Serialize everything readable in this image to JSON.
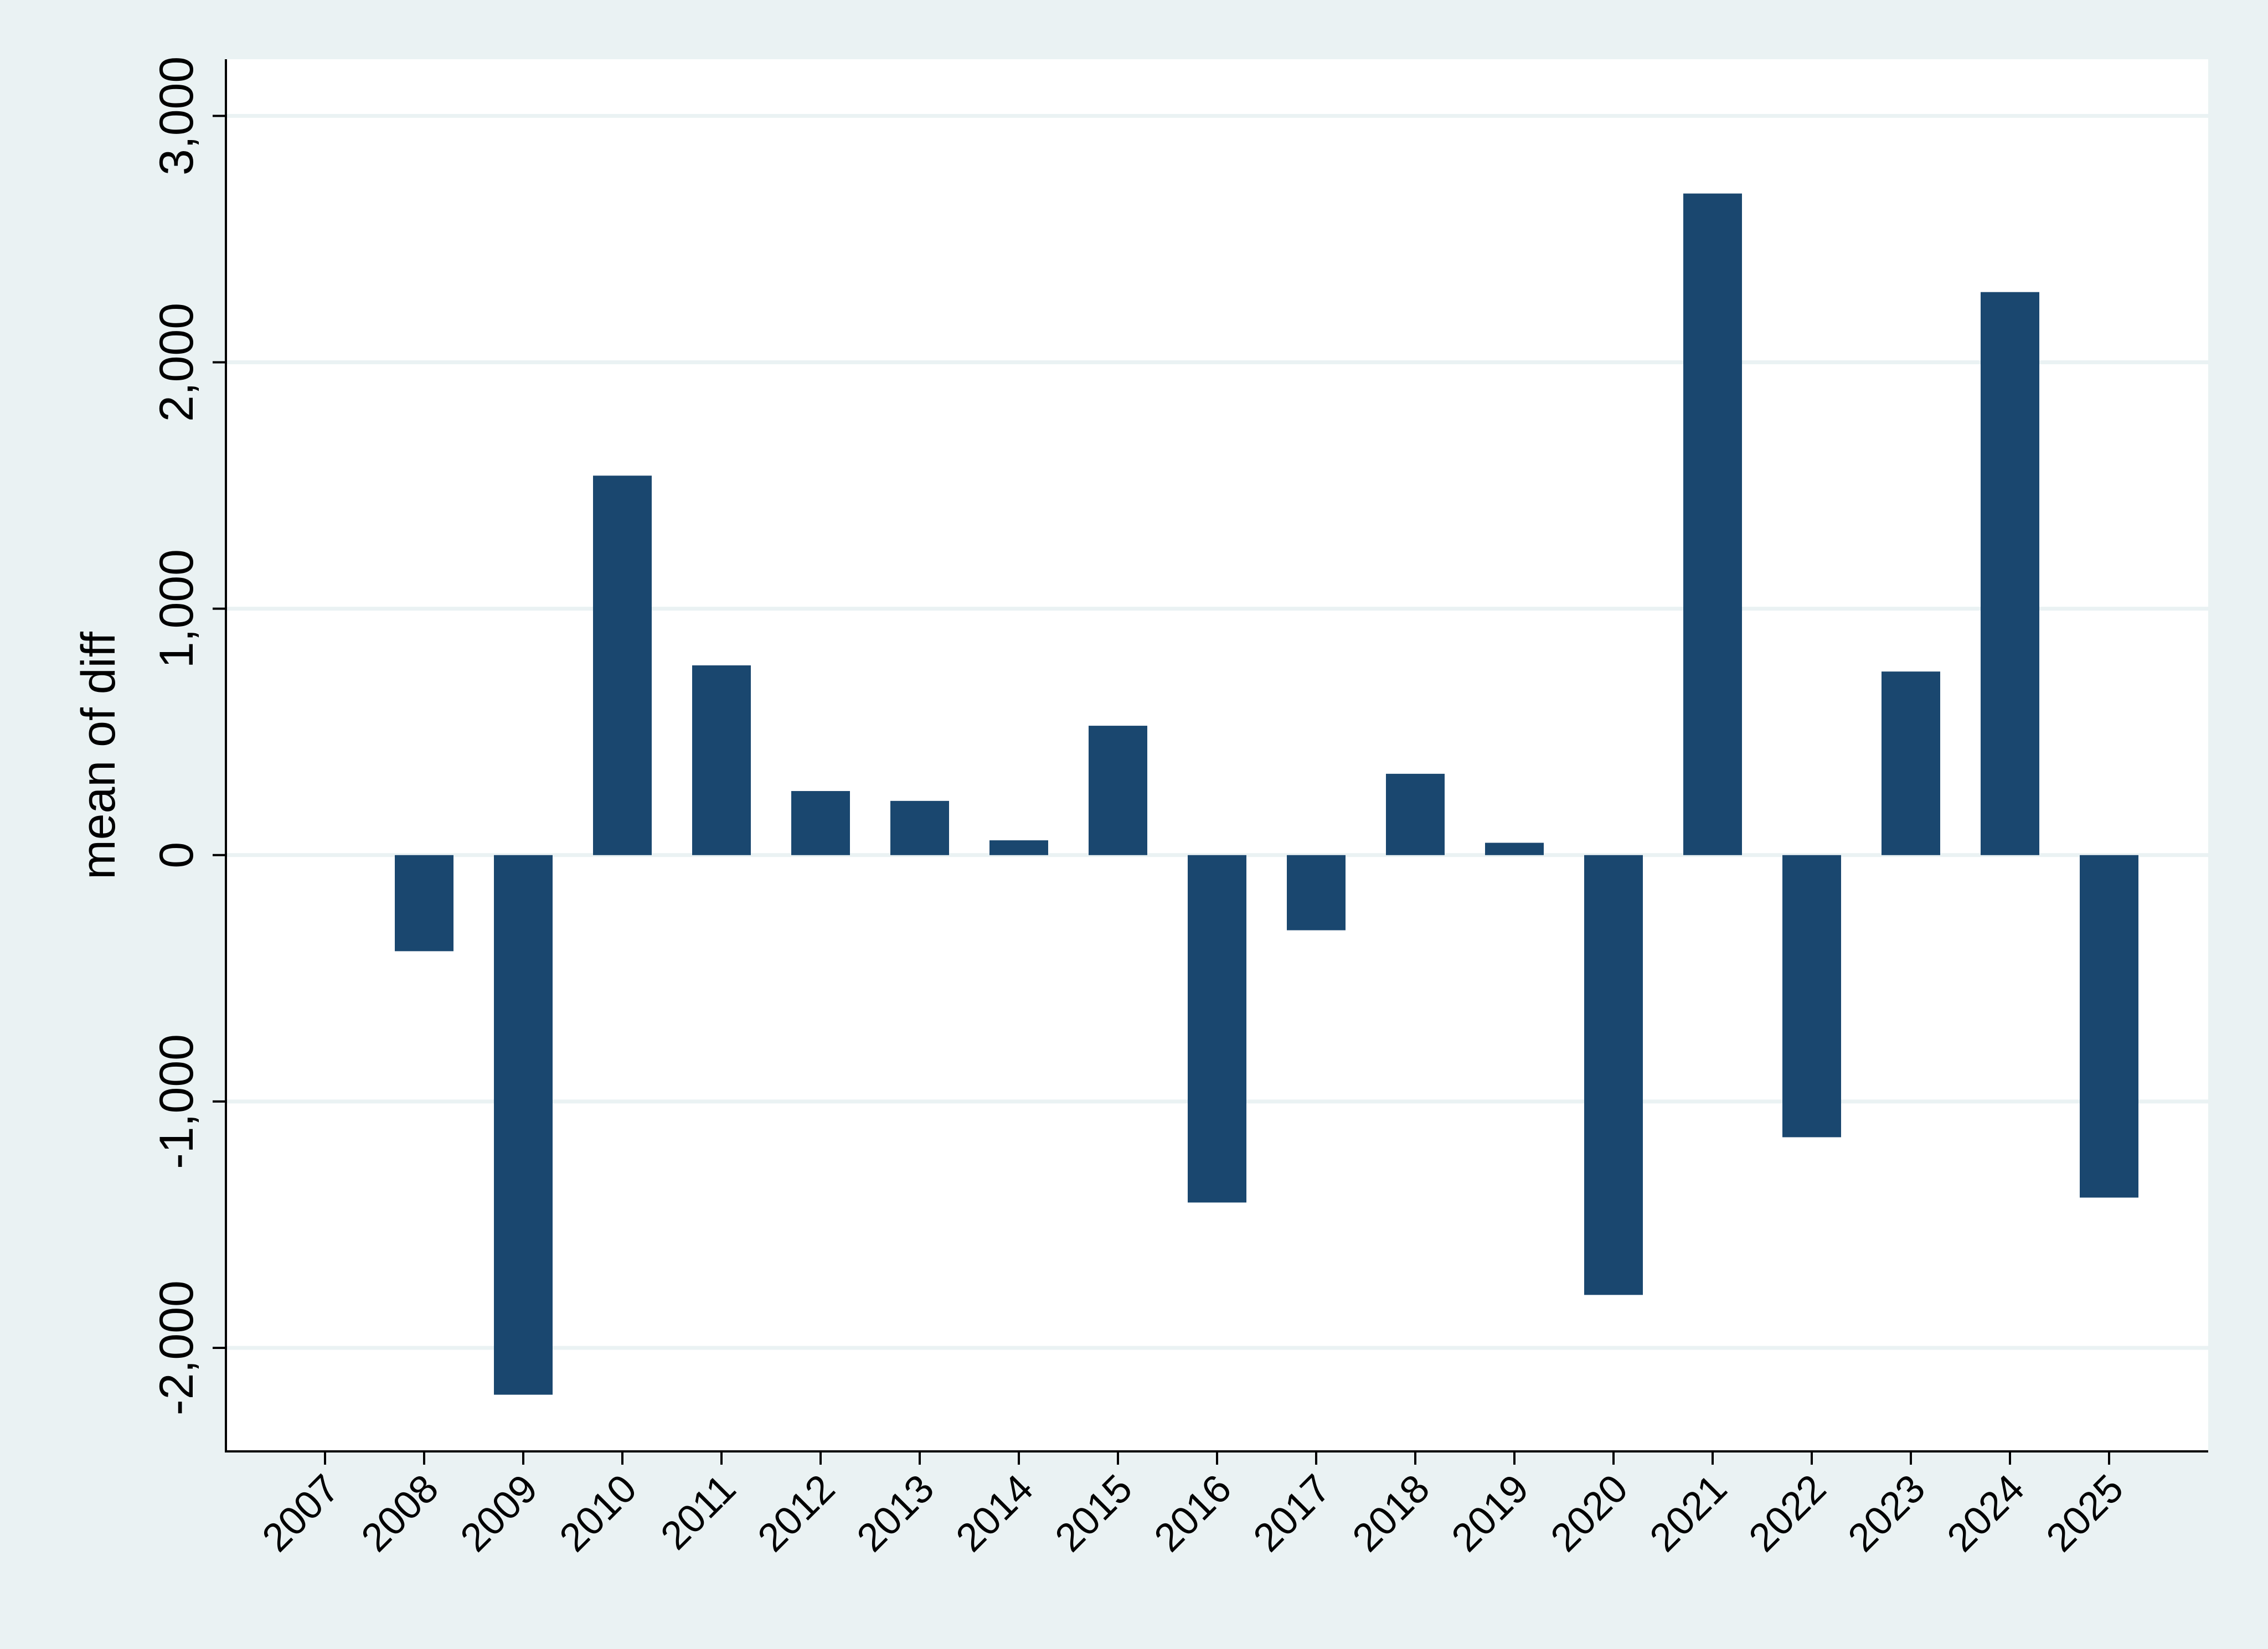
{
  "chart_data": {
    "type": "bar",
    "title": "",
    "xlabel": "",
    "ylabel": "mean of diff",
    "ylim": [
      -2420,
      3230
    ],
    "yticks": [
      -2000,
      -1000,
      0,
      1000,
      2000,
      3000
    ],
    "ytick_labels": [
      "-2,000",
      "-1,000",
      "0",
      "1,000",
      "2,000",
      "3,000"
    ],
    "categories": [
      "2007",
      "2008",
      "2009",
      "2010",
      "2011",
      "2012",
      "2013",
      "2014",
      "2015",
      "2016",
      "2017",
      "2018",
      "2019",
      "2020",
      "2021",
      "2022",
      "2023",
      "2024",
      "2025"
    ],
    "values": [
      0,
      -390,
      -2190,
      1540,
      770,
      260,
      220,
      60,
      525,
      -1410,
      -305,
      330,
      50,
      -1785,
      2685,
      -1145,
      745,
      2285,
      -1390
    ],
    "grid": true,
    "legend": "none",
    "colors": {
      "bar": "#1a476f",
      "background": "#eaf2f3",
      "plot_background": "#ffffff",
      "grid": "#eaf2f3",
      "axis": "#000000"
    }
  }
}
